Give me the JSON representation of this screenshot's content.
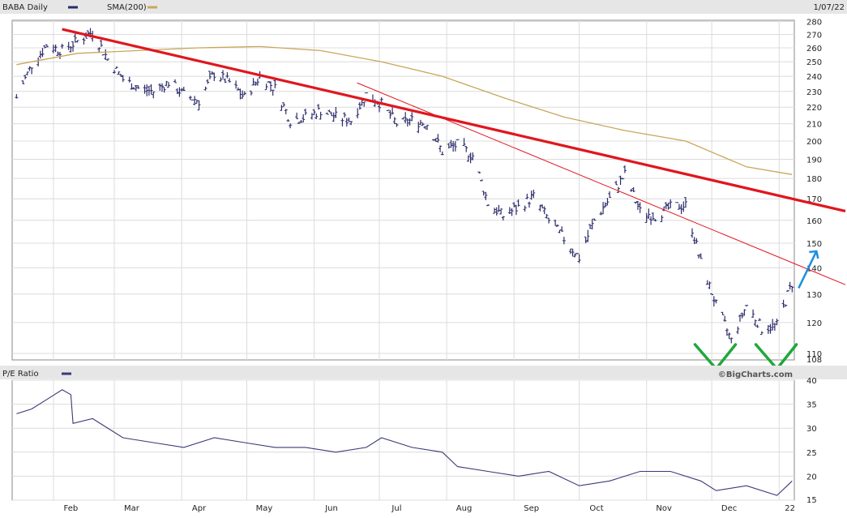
{
  "header": {
    "price_label": "BABA Daily",
    "sma_label": "SMA(200)",
    "date_label": "1/07/22"
  },
  "watermark": "©BigCharts.com",
  "colors": {
    "price_bars": "#2b2b6b",
    "sma": "#c8a75a",
    "pe_line": "#3a3a7a",
    "trend_main": "#e0161e",
    "trend_thin": "#e0161e",
    "annotation_arrow": "#1a8fe0",
    "annotation_v": "#1fa83a",
    "grid": "#dcdcdc",
    "panel_border": "#8a8a8a",
    "header_bg": "#e6e6e6"
  },
  "x_axis": {
    "labels": [
      "Feb",
      "Mar",
      "Apr",
      "May",
      "Jun",
      "Jul",
      "Aug",
      "Sep",
      "Oct",
      "Nov",
      "Dec",
      "22"
    ]
  },
  "chart_data": [
    {
      "type": "line",
      "title": "BABA Daily",
      "y_ticks": [
        110,
        120,
        130,
        140,
        150,
        160,
        170,
        180,
        190,
        200,
        210,
        220,
        230,
        240,
        250,
        260,
        270,
        280
      ],
      "y_bottom_label": "108",
      "ylim": [
        108,
        281
      ],
      "scale": "log",
      "grid": true,
      "series": [
        {
          "name": "BABA Daily",
          "style": "ohlc-bars",
          "x": [
            "2021-01-15",
            "2021-01-22",
            "2021-01-29",
            "2021-02-05",
            "2021-02-12",
            "2021-02-19",
            "2021-02-26",
            "2021-03-05",
            "2021-03-12",
            "2021-03-19",
            "2021-03-26",
            "2021-04-02",
            "2021-04-09",
            "2021-04-16",
            "2021-04-23",
            "2021-04-30",
            "2021-05-07",
            "2021-05-14",
            "2021-05-21",
            "2021-05-28",
            "2021-06-04",
            "2021-06-11",
            "2021-06-18",
            "2021-06-25",
            "2021-07-02",
            "2021-07-09",
            "2021-07-16",
            "2021-07-23",
            "2021-07-30",
            "2021-08-06",
            "2021-08-13",
            "2021-08-20",
            "2021-08-27",
            "2021-09-03",
            "2021-09-10",
            "2021-09-17",
            "2021-09-24",
            "2021-10-01",
            "2021-10-08",
            "2021-10-15",
            "2021-10-22",
            "2021-10-29",
            "2021-11-05",
            "2021-11-12",
            "2021-11-19",
            "2021-11-26",
            "2021-12-03",
            "2021-12-10",
            "2021-12-17",
            "2021-12-24",
            "2021-12-31",
            "2022-01-07"
          ],
          "values": [
            226,
            248,
            262,
            258,
            265,
            272,
            252,
            238,
            232,
            230,
            236,
            228,
            224,
            242,
            236,
            226,
            240,
            232,
            212,
            214,
            218,
            214,
            212,
            228,
            222,
            210,
            212,
            210,
            194,
            198,
            192,
            168,
            162,
            166,
            171,
            160,
            152,
            144,
            160,
            170,
            182,
            164,
            162,
            166,
            167,
            142,
            126,
            114,
            126,
            118,
            119,
            134
          ]
        },
        {
          "name": "SMA(200)",
          "x": [
            "2021-01-15",
            "2021-02-12",
            "2021-03-12",
            "2021-04-09",
            "2021-05-07",
            "2021-06-04",
            "2021-07-02",
            "2021-07-30",
            "2021-08-27",
            "2021-09-24",
            "2021-10-22",
            "2021-11-19",
            "2021-12-17",
            "2022-01-07"
          ],
          "values": [
            248,
            256,
            258,
            260,
            261,
            258,
            250,
            240,
            226,
            214,
            206,
            200,
            186,
            182
          ]
        }
      ],
      "annotations": {
        "trendlines": [
          {
            "name": "upper downtrend",
            "from": [
              "2021-02-05",
              274
            ],
            "to": [
              "2022-01-07",
              170
            ]
          },
          {
            "name": "lower downtrend",
            "from": [
              "2021-07-02",
              229
            ],
            "to": [
              "2022-01-07",
              142
            ]
          }
        ],
        "arrow": {
          "from": [
            "2022-01-07",
            131
          ],
          "to": [
            "2022-01-07",
            148
          ]
        },
        "v_marks": [
          "2021-12-03",
          "2021-12-31"
        ]
      }
    },
    {
      "type": "line",
      "title": "P/E Ratio",
      "y_ticks": [
        15,
        20,
        25,
        30,
        35,
        40
      ],
      "ylim": [
        15,
        40
      ],
      "grid": true,
      "series": [
        {
          "name": "P/E Ratio",
          "x": [
            "2021-01-15",
            "2021-01-22",
            "2021-01-29",
            "2021-02-05",
            "2021-02-09",
            "2021-02-10",
            "2021-02-19",
            "2021-03-05",
            "2021-03-19",
            "2021-04-02",
            "2021-04-16",
            "2021-04-30",
            "2021-05-14",
            "2021-05-28",
            "2021-06-11",
            "2021-06-25",
            "2021-07-02",
            "2021-07-16",
            "2021-07-30",
            "2021-08-06",
            "2021-08-20",
            "2021-09-03",
            "2021-09-17",
            "2021-10-01",
            "2021-10-15",
            "2021-10-29",
            "2021-11-12",
            "2021-11-26",
            "2021-12-03",
            "2021-12-17",
            "2021-12-31",
            "2022-01-07"
          ],
          "values": [
            33,
            34,
            36,
            38,
            37,
            31,
            32,
            28,
            27,
            26,
            28,
            27,
            26,
            26,
            25,
            26,
            28,
            26,
            25,
            22,
            21,
            20,
            21,
            18,
            19,
            21,
            21,
            19,
            17,
            18,
            16,
            19
          ]
        }
      ]
    }
  ]
}
